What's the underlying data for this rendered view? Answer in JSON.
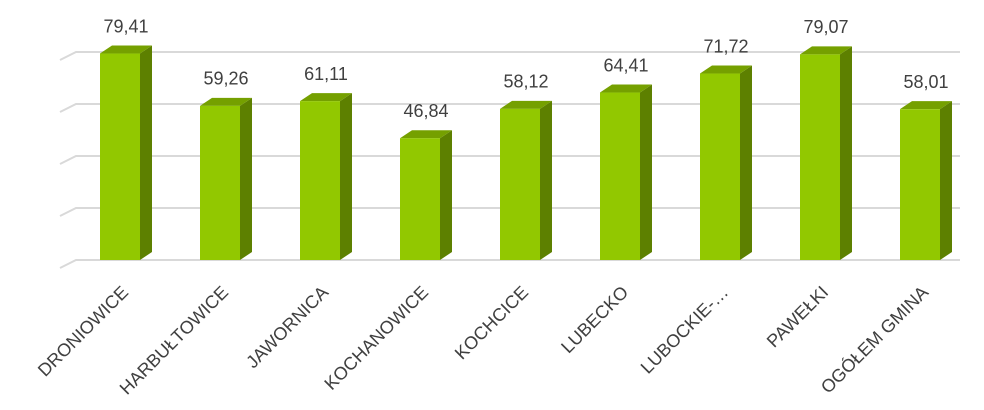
{
  "chart_data": {
    "type": "bar",
    "categories": [
      "DRONIOWICE",
      "HARBUŁTOWICE",
      "JAWORNICA",
      "KOCHANOWICE",
      "KOCHCICE",
      "LUBECKO",
      "LUBOCKIE-…",
      "PAWEŁKI",
      "OGÓŁEM GMINA"
    ],
    "values": [
      79.41,
      59.26,
      61.11,
      46.84,
      58.12,
      64.41,
      71.72,
      79.07,
      58.01
    ],
    "value_labels": [
      "79,41",
      "59,26",
      "61,11",
      "46,84",
      "58,12",
      "64,41",
      "71,72",
      "79,07",
      "58,01"
    ],
    "color": "#92c800",
    "ylim": [
      0,
      80
    ],
    "yticks": [
      0,
      20,
      40,
      60,
      80
    ],
    "grid": true
  }
}
